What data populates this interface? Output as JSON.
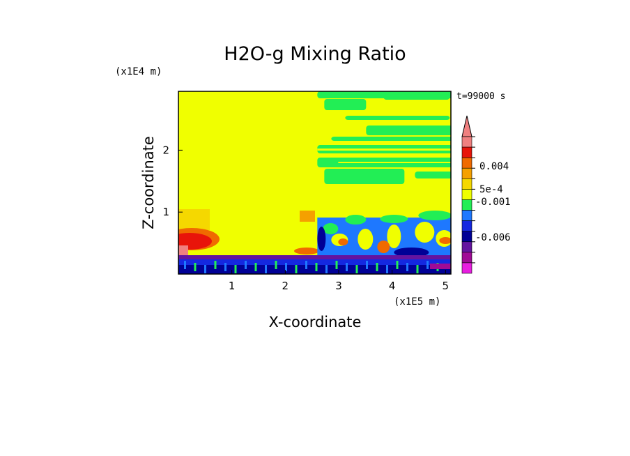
{
  "chart_data": {
    "type": "heatmap",
    "title": "H2O-g Mixing Ratio",
    "xlabel": "X-coordinate",
    "ylabel": "Z-coordinate",
    "x_unit": "(x1E5 m)",
    "y_unit": "(x1E4 m)",
    "time_label": "t=99000 s",
    "xlim": [
      0,
      5.1
    ],
    "ylim": [
      0,
      2.95
    ],
    "x_ticks": [
      "1",
      "2",
      "3",
      "4",
      "5"
    ],
    "x_tick_values": [
      1,
      2,
      3,
      4,
      5
    ],
    "y_ticks": [
      "1",
      "2"
    ],
    "y_tick_values": [
      1,
      2
    ],
    "colorbar": {
      "labels": [
        "0.004",
        "5e-4",
        "-0.001",
        "-0.006"
      ],
      "levels_top_to_bottom": [
        {
          "color": "#f08080"
        },
        {
          "color": "#e8140a"
        },
        {
          "color": "#f06a00"
        },
        {
          "color": "#f5a000"
        },
        {
          "color": "#f5d800"
        },
        {
          "color": "#f0ff00"
        },
        {
          "color": "#22ee55"
        },
        {
          "color": "#1e78ff"
        },
        {
          "color": "#1428e0"
        },
        {
          "color": "#000096"
        },
        {
          "color": "#6414a0"
        },
        {
          "color": "#a00a96"
        },
        {
          "color": "#e81ee0"
        }
      ],
      "extend_top_color": "#f08080"
    },
    "regions": [
      {
        "name": "background",
        "color": "#f0ff00",
        "x": [
          0,
          5.1
        ],
        "z": [
          0,
          2.95
        ]
      },
      {
        "name": "upper-right-band",
        "color": "#22ee55",
        "x": [
          2.6,
          5.1
        ],
        "z": [
          2.3,
          2.95
        ]
      },
      {
        "name": "mid-right-band",
        "color": "#22ee55",
        "x": [
          2.6,
          5.1
        ],
        "z": [
          1.6,
          2.05
        ]
      },
      {
        "name": "low-left-red",
        "color": "#e8140a",
        "x": [
          0,
          0.35
        ],
        "z": [
          0.35,
          0.65
        ]
      },
      {
        "name": "surface-layer",
        "color": "#1428e0",
        "x": [
          0,
          5.1
        ],
        "z": [
          0,
          0.3
        ]
      }
    ]
  }
}
